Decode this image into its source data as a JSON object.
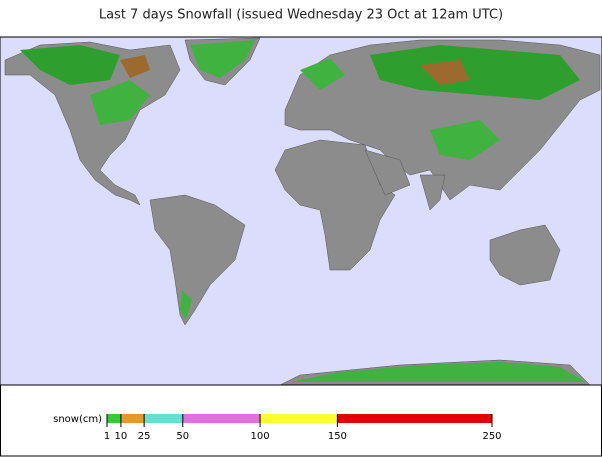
{
  "title": "Last 7 days Snowfall (issued Wednesday 23 Oct at 12am UTC)",
  "legend": {
    "label": "snow(cm)",
    "range": [
      1,
      250
    ],
    "ticks": [
      1,
      10,
      25,
      50,
      100,
      150,
      250
    ],
    "colors": [
      "#33cc33",
      "#e8962e",
      "#66e0d0",
      "#e070e0",
      "#ffff33",
      "#e00000"
    ]
  }
}
